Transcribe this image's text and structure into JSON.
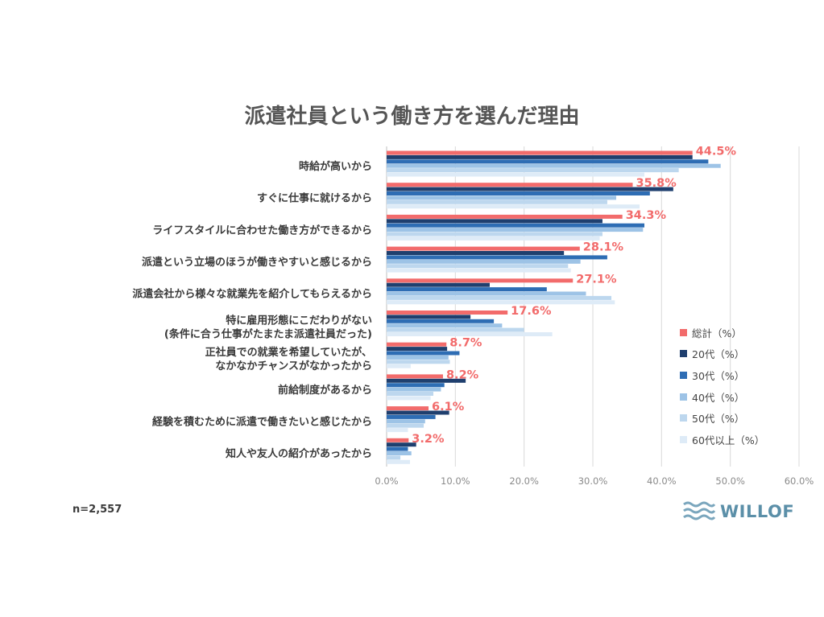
{
  "note": "n=2,557",
  "logo": {
    "text": "WILLOF",
    "icon": "waves-icon",
    "color": "#5b8fa8"
  },
  "chart_data": {
    "type": "bar",
    "orientation": "horizontal",
    "title": "派遣社員という働き方を選んだ理由",
    "categories": [
      [
        "時給が高いから"
      ],
      [
        "すぐに仕事に就けるから"
      ],
      [
        "ライフスタイルに合わせた働き方ができるから"
      ],
      [
        "派遣という立場のほうが働きやすいと感じるから"
      ],
      [
        "派遣会社から様々な就業先を紹介してもらえるから"
      ],
      [
        "特に雇用形態にこだわりがない",
        "(条件に合う仕事がたまたま派遣社員だった)"
      ],
      [
        "正社員での就業を希望していたが、",
        "なかなかチャンスがなかったから"
      ],
      [
        "前給制度があるから"
      ],
      [
        "経験を積むために派遣で働きたいと感じたから"
      ],
      [
        "知人や友人の紹介があったから"
      ]
    ],
    "series": [
      {
        "name": "総計（%）",
        "color": "#f26b6b",
        "values": [
          44.5,
          35.8,
          34.3,
          28.1,
          27.1,
          17.6,
          8.7,
          8.2,
          6.1,
          3.2
        ]
      },
      {
        "name": "20代（%）",
        "color": "#1f3f6e",
        "values": [
          44.5,
          41.7,
          31.4,
          25.8,
          15.0,
          12.2,
          8.8,
          11.5,
          9.1,
          4.3
        ]
      },
      {
        "name": "30代（%）",
        "color": "#2e6db4",
        "values": [
          46.8,
          38.3,
          37.5,
          32.1,
          23.3,
          15.6,
          10.6,
          8.4,
          7.1,
          3.1
        ]
      },
      {
        "name": "40代（%）",
        "color": "#9dc3e6",
        "values": [
          48.6,
          33.4,
          37.3,
          28.2,
          29.0,
          16.8,
          9.0,
          7.9,
          5.6,
          3.6
        ]
      },
      {
        "name": "50代（%）",
        "color": "#bdd7ee",
        "values": [
          42.5,
          32.1,
          31.4,
          26.4,
          32.7,
          20.0,
          9.2,
          6.8,
          5.4,
          2.0
        ]
      },
      {
        "name": "60代以上（%）",
        "color": "#deebf7",
        "values": [
          37.5,
          36.8,
          31.0,
          26.8,
          33.2,
          24.1,
          3.5,
          6.4,
          3.1,
          3.4
        ]
      }
    ],
    "data_labels": [
      "44.5%",
      "35.8%",
      "34.3%",
      "28.1%",
      "27.1%",
      "17.6%",
      "8.7%",
      "8.2%",
      "6.1%",
      "3.2%"
    ],
    "xticks": [
      "0.0%",
      "10.0%",
      "20.0%",
      "30.0%",
      "40.0%",
      "50.0%",
      "60.0%"
    ],
    "xlim": [
      0,
      60
    ],
    "grid": true,
    "legend_position": "right"
  }
}
